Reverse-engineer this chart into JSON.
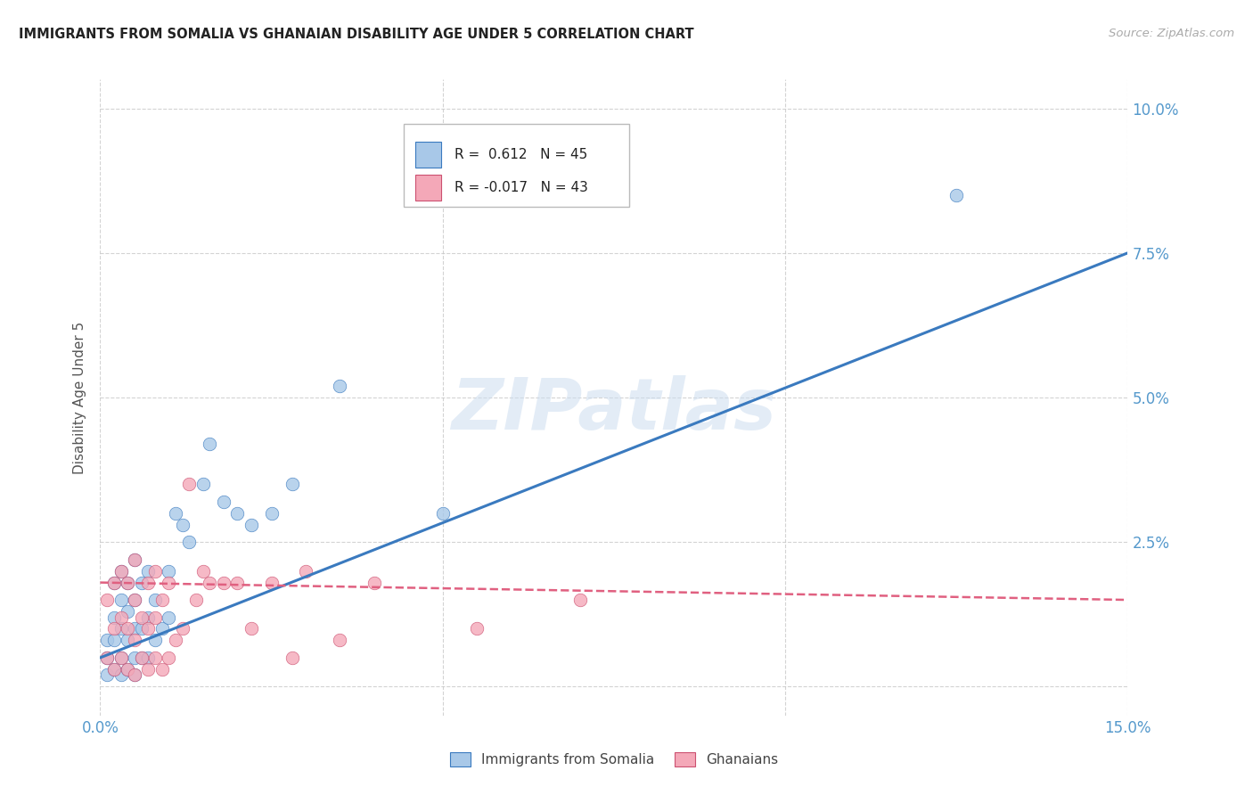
{
  "title": "IMMIGRANTS FROM SOMALIA VS GHANAIAN DISABILITY AGE UNDER 5 CORRELATION CHART",
  "source": "Source: ZipAtlas.com",
  "ylabel": "Disability Age Under 5",
  "x_min": 0.0,
  "x_max": 0.15,
  "y_min": -0.005,
  "y_max": 0.105,
  "x_ticks": [
    0.0,
    0.05,
    0.1,
    0.15
  ],
  "x_tick_labels": [
    "0.0%",
    "",
    "",
    "15.0%"
  ],
  "y_ticks": [
    0.0,
    0.025,
    0.05,
    0.075,
    0.1
  ],
  "y_tick_labels_right": [
    "",
    "2.5%",
    "5.0%",
    "7.5%",
    "10.0%"
  ],
  "legend_somalia_label": "Immigrants from Somalia",
  "legend_ghana_label": "Ghanaians",
  "somalia_R": "0.612",
  "somalia_N": "45",
  "ghana_R": "-0.017",
  "ghana_N": "43",
  "somalia_color": "#a8c8e8",
  "ghana_color": "#f4a8b8",
  "somalia_line_color": "#3a7abf",
  "ghana_line_color": "#e06080",
  "watermark_text": "ZIPatlas",
  "background_color": "#ffffff",
  "grid_color": "#c8c8c8",
  "title_color": "#222222",
  "axis_label_color": "#555555",
  "tick_label_color": "#5599cc",
  "somalia_scatter_x": [
    0.001,
    0.001,
    0.001,
    0.002,
    0.002,
    0.002,
    0.002,
    0.003,
    0.003,
    0.003,
    0.003,
    0.003,
    0.004,
    0.004,
    0.004,
    0.004,
    0.005,
    0.005,
    0.005,
    0.005,
    0.005,
    0.006,
    0.006,
    0.006,
    0.007,
    0.007,
    0.007,
    0.008,
    0.008,
    0.009,
    0.01,
    0.01,
    0.011,
    0.012,
    0.013,
    0.015,
    0.016,
    0.018,
    0.02,
    0.022,
    0.025,
    0.028,
    0.035,
    0.05,
    0.125
  ],
  "somalia_scatter_y": [
    0.002,
    0.005,
    0.008,
    0.003,
    0.008,
    0.012,
    0.018,
    0.002,
    0.005,
    0.01,
    0.015,
    0.02,
    0.003,
    0.008,
    0.013,
    0.018,
    0.002,
    0.005,
    0.01,
    0.015,
    0.022,
    0.005,
    0.01,
    0.018,
    0.005,
    0.012,
    0.02,
    0.008,
    0.015,
    0.01,
    0.012,
    0.02,
    0.03,
    0.028,
    0.025,
    0.035,
    0.042,
    0.032,
    0.03,
    0.028,
    0.03,
    0.035,
    0.052,
    0.03,
    0.085
  ],
  "ghana_scatter_x": [
    0.001,
    0.001,
    0.002,
    0.002,
    0.002,
    0.003,
    0.003,
    0.003,
    0.004,
    0.004,
    0.004,
    0.005,
    0.005,
    0.005,
    0.005,
    0.006,
    0.006,
    0.007,
    0.007,
    0.007,
    0.008,
    0.008,
    0.008,
    0.009,
    0.009,
    0.01,
    0.01,
    0.011,
    0.012,
    0.013,
    0.014,
    0.015,
    0.016,
    0.018,
    0.02,
    0.022,
    0.025,
    0.028,
    0.03,
    0.035,
    0.04,
    0.055,
    0.07
  ],
  "ghana_scatter_y": [
    0.005,
    0.015,
    0.003,
    0.01,
    0.018,
    0.005,
    0.012,
    0.02,
    0.003,
    0.01,
    0.018,
    0.002,
    0.008,
    0.015,
    0.022,
    0.005,
    0.012,
    0.003,
    0.01,
    0.018,
    0.005,
    0.012,
    0.02,
    0.003,
    0.015,
    0.005,
    0.018,
    0.008,
    0.01,
    0.035,
    0.015,
    0.02,
    0.018,
    0.018,
    0.018,
    0.01,
    0.018,
    0.005,
    0.02,
    0.008,
    0.018,
    0.01,
    0.015
  ],
  "somalia_line_x": [
    0.0,
    0.15
  ],
  "somalia_line_y": [
    0.005,
    0.075
  ],
  "ghana_line_x": [
    0.0,
    0.15
  ],
  "ghana_line_y": [
    0.018,
    0.015
  ]
}
